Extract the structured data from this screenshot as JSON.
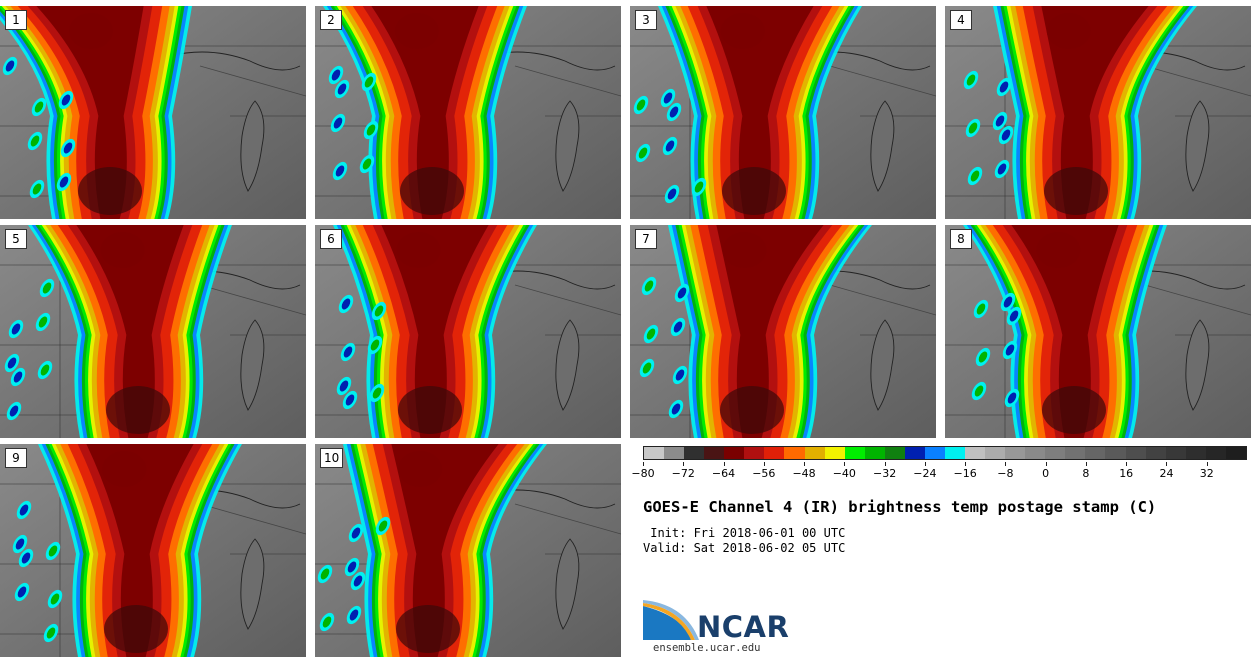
{
  "panels": [
    {
      "label": "1"
    },
    {
      "label": "2"
    },
    {
      "label": "3"
    },
    {
      "label": "4"
    },
    {
      "label": "5"
    },
    {
      "label": "6"
    },
    {
      "label": "7"
    },
    {
      "label": "8"
    },
    {
      "label": "9"
    },
    {
      "label": "10"
    }
  ],
  "colorbar": {
    "colors": [
      "#c8c8c8",
      "#8c8c8c",
      "#303030",
      "#4a1414",
      "#7a0000",
      "#b01010",
      "#e02008",
      "#ff6a00",
      "#e2b000",
      "#f2f200",
      "#00ee00",
      "#00b400",
      "#108010",
      "#0020b0",
      "#0a80ff",
      "#00f0f0",
      "#c0c0c0",
      "#acacac",
      "#989898",
      "#8a8a8a",
      "#7e7e7e",
      "#727272",
      "#666666",
      "#5a5a5a",
      "#4e4e4e",
      "#424242",
      "#383838",
      "#2e2e2e",
      "#262626",
      "#1e1e1e"
    ],
    "ticks": [
      "-80",
      "-72",
      "-64",
      "-56",
      "-48",
      "-40",
      "-32",
      "-24",
      "-16",
      "-8",
      "0",
      "8",
      "16",
      "24",
      "32"
    ]
  },
  "title": "GOES-E Channel 4 (IR) brightness temp postage stamp (C)",
  "init": " Init: Fri 2018-06-01 00 UTC",
  "valid": "Valid: Sat 2018-06-02 05 UTC",
  "logo": {
    "text": "NCAR",
    "url": "ensemble.ucar.edu"
  }
}
